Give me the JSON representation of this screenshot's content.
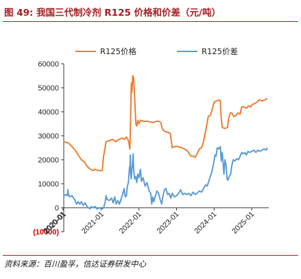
{
  "figure": {
    "title": "图 49:  我国三代制冷剂 R125 价格和价差（元/吨）",
    "source": "资料来源：百川盈孚，信达证券研发中心"
  },
  "colors": {
    "accent": "#a41f24",
    "price": "#ed7d31",
    "spread": "#5b9bd5",
    "negative_tick": "#d30000"
  },
  "chart_data": {
    "type": "line",
    "title": "",
    "xlabel": "",
    "ylabel": "",
    "ylim": [
      -10000,
      60000
    ],
    "yticks": [
      60000,
      50000,
      40000,
      30000,
      20000,
      10000,
      0,
      -10000
    ],
    "ytick_labels": [
      "60000",
      "50000",
      "40000",
      "30000",
      "20000",
      "10000",
      "0",
      "(10000)"
    ],
    "xlim": [
      "2020-01-01",
      "2025-06-15"
    ],
    "xticks": [
      "2020-01",
      "2020-01",
      "2021-01",
      "2022-01",
      "2023-01",
      "2024-01",
      "2025-01"
    ],
    "xtick_dates": [
      "2019-12-25",
      "2020-01-01",
      "2021-01-01",
      "2022-01-01",
      "2023-01-01",
      "2024-01-01",
      "2025-01-01"
    ],
    "legend": "top",
    "grid": false,
    "series": [
      {
        "name": "R125价格",
        "color": "#ed7d31",
        "points": [
          [
            "2020-01-01",
            27500
          ],
          [
            "2020-02-15",
            27000
          ],
          [
            "2020-03-20",
            25500
          ],
          [
            "2020-04-20",
            24000
          ],
          [
            "2020-05-20",
            22000
          ],
          [
            "2020-06-20",
            20000
          ],
          [
            "2020-07-20",
            19000
          ],
          [
            "2020-08-20",
            17000
          ],
          [
            "2020-09-15",
            16000
          ],
          [
            "2020-10-10",
            15500
          ],
          [
            "2020-11-01",
            16000
          ],
          [
            "2020-12-01",
            15500
          ],
          [
            "2021-01-10",
            15500
          ],
          [
            "2021-01-20",
            21000
          ],
          [
            "2021-02-15",
            27500
          ],
          [
            "2021-03-20",
            28000
          ],
          [
            "2021-04-20",
            28500
          ],
          [
            "2021-05-20",
            27500
          ],
          [
            "2021-06-20",
            28500
          ],
          [
            "2021-07-20",
            29000
          ],
          [
            "2021-08-15",
            28500
          ],
          [
            "2021-09-01",
            29500
          ],
          [
            "2021-09-20",
            28000
          ],
          [
            "2021-10-05",
            24500
          ],
          [
            "2021-10-10",
            35000
          ],
          [
            "2021-10-18",
            52000
          ],
          [
            "2021-10-24",
            48000
          ],
          [
            "2021-11-01",
            55000
          ],
          [
            "2021-11-10",
            54000
          ],
          [
            "2021-11-20",
            46000
          ],
          [
            "2021-12-01",
            35000
          ],
          [
            "2021-12-10",
            34000
          ],
          [
            "2021-12-20",
            36500
          ],
          [
            "2022-01-01",
            35000
          ],
          [
            "2022-01-15",
            36500
          ],
          [
            "2022-02-15",
            36000
          ],
          [
            "2022-04-01",
            36000
          ],
          [
            "2022-05-15",
            35500
          ],
          [
            "2022-06-15",
            36000
          ],
          [
            "2022-07-15",
            36000
          ],
          [
            "2022-08-01",
            35500
          ],
          [
            "2022-08-15",
            33000
          ],
          [
            "2022-09-01",
            32000
          ],
          [
            "2022-10-01",
            31500
          ],
          [
            "2022-11-01",
            31000
          ],
          [
            "2022-11-20",
            25000
          ],
          [
            "2022-12-15",
            25500
          ],
          [
            "2023-01-15",
            25500
          ],
          [
            "2023-02-20",
            25000
          ],
          [
            "2023-03-20",
            24500
          ],
          [
            "2023-04-20",
            23500
          ],
          [
            "2023-05-20",
            21500
          ],
          [
            "2023-06-15",
            21500
          ],
          [
            "2023-07-01",
            21000
          ],
          [
            "2023-07-20",
            22500
          ],
          [
            "2023-08-10",
            24500
          ],
          [
            "2023-09-01",
            25000
          ],
          [
            "2023-09-20",
            27500
          ],
          [
            "2023-10-15",
            33000
          ],
          [
            "2023-11-05",
            38000
          ],
          [
            "2023-11-25",
            38500
          ],
          [
            "2023-12-10",
            40500
          ],
          [
            "2024-01-01",
            44000
          ],
          [
            "2024-01-20",
            44500
          ],
          [
            "2024-02-01",
            44500
          ],
          [
            "2024-02-15",
            45000
          ],
          [
            "2024-03-01",
            44500
          ],
          [
            "2024-03-10",
            37000
          ],
          [
            "2024-03-20",
            33500
          ],
          [
            "2024-04-15",
            33000
          ],
          [
            "2024-05-10",
            33500
          ],
          [
            "2024-05-20",
            37000
          ],
          [
            "2024-06-05",
            39500
          ],
          [
            "2024-06-20",
            39500
          ],
          [
            "2024-07-10",
            38000
          ],
          [
            "2024-08-01",
            38500
          ],
          [
            "2024-08-20",
            39500
          ],
          [
            "2024-09-10",
            39000
          ],
          [
            "2024-09-25",
            42000
          ],
          [
            "2024-10-20",
            42000
          ],
          [
            "2024-11-10",
            41500
          ],
          [
            "2024-12-01",
            42500
          ],
          [
            "2024-12-20",
            42000
          ],
          [
            "2025-01-05",
            43000
          ],
          [
            "2025-02-01",
            43500
          ],
          [
            "2025-02-20",
            44000
          ],
          [
            "2025-03-15",
            45000
          ],
          [
            "2025-04-15",
            44500
          ],
          [
            "2025-05-10",
            45000
          ],
          [
            "2025-06-01",
            45500
          ]
        ]
      },
      {
        "name": "R125价差",
        "color": "#5b9bd5",
        "points": [
          [
            "2020-01-01",
            5000
          ],
          [
            "2020-01-20",
            5500
          ],
          [
            "2020-02-05",
            5000
          ],
          [
            "2020-02-10",
            7500
          ],
          [
            "2020-02-15",
            5500
          ],
          [
            "2020-03-01",
            4500
          ],
          [
            "2020-03-20",
            5000
          ],
          [
            "2020-04-15",
            3500
          ],
          [
            "2020-05-05",
            1500
          ],
          [
            "2020-05-20",
            2500
          ],
          [
            "2020-06-05",
            1500
          ],
          [
            "2020-06-20",
            2500
          ],
          [
            "2020-07-10",
            1000
          ],
          [
            "2020-07-25",
            2000
          ],
          [
            "2020-08-15",
            500
          ],
          [
            "2020-09-10",
            -500
          ],
          [
            "2020-09-25",
            500
          ],
          [
            "2020-10-10",
            0
          ],
          [
            "2020-11-01",
            500
          ],
          [
            "2020-11-20",
            -500
          ],
          [
            "2020-12-10",
            0
          ],
          [
            "2021-01-01",
            -500
          ],
          [
            "2021-01-20",
            -200
          ],
          [
            "2021-02-05",
            2000
          ],
          [
            "2021-02-15",
            5000
          ],
          [
            "2021-02-25",
            3500
          ],
          [
            "2021-03-20",
            3000
          ],
          [
            "2021-04-10",
            4000
          ],
          [
            "2021-04-25",
            2000
          ],
          [
            "2021-05-10",
            4500
          ],
          [
            "2021-05-25",
            1500
          ],
          [
            "2021-06-10",
            3000
          ],
          [
            "2021-06-25",
            1500
          ],
          [
            "2021-07-10",
            3500
          ],
          [
            "2021-07-25",
            5500
          ],
          [
            "2021-08-10",
            8000
          ],
          [
            "2021-08-20",
            4500
          ],
          [
            "2021-09-01",
            5000
          ],
          [
            "2021-09-10",
            9000
          ],
          [
            "2021-09-20",
            10500
          ],
          [
            "2021-10-01",
            17000
          ],
          [
            "2021-10-05",
            16000
          ],
          [
            "2021-10-08",
            22000
          ],
          [
            "2021-10-12",
            14000
          ],
          [
            "2021-10-18",
            12000
          ],
          [
            "2021-10-24",
            16000
          ],
          [
            "2021-11-01",
            20000
          ],
          [
            "2021-11-05",
            22500
          ],
          [
            "2021-11-10",
            16000
          ],
          [
            "2021-11-20",
            12000
          ],
          [
            "2021-12-01",
            13000
          ],
          [
            "2021-12-10",
            10500
          ],
          [
            "2021-12-20",
            14000
          ],
          [
            "2022-01-01",
            12500
          ],
          [
            "2022-01-15",
            16000
          ],
          [
            "2022-01-25",
            11000
          ],
          [
            "2022-02-10",
            12500
          ],
          [
            "2022-03-01",
            9000
          ],
          [
            "2022-03-20",
            10500
          ],
          [
            "2022-04-10",
            7000
          ],
          [
            "2022-04-25",
            6000
          ],
          [
            "2022-05-05",
            1500
          ],
          [
            "2022-05-15",
            4500
          ],
          [
            "2022-05-25",
            2500
          ],
          [
            "2022-06-10",
            5000
          ],
          [
            "2022-06-25",
            7000
          ],
          [
            "2022-07-10",
            6000
          ],
          [
            "2022-07-25",
            3500
          ],
          [
            "2022-08-10",
            1500
          ],
          [
            "2022-08-20",
            4500
          ],
          [
            "2022-09-05",
            7500
          ],
          [
            "2022-09-20",
            8000
          ],
          [
            "2022-10-05",
            5500
          ],
          [
            "2022-10-20",
            6000
          ],
          [
            "2022-11-05",
            4000
          ],
          [
            "2022-11-20",
            6000
          ],
          [
            "2022-12-10",
            4500
          ],
          [
            "2023-01-01",
            5000
          ],
          [
            "2023-01-20",
            6000
          ],
          [
            "2023-02-10",
            7500
          ],
          [
            "2023-03-01",
            5500
          ],
          [
            "2023-03-20",
            6000
          ],
          [
            "2023-04-10",
            5500
          ],
          [
            "2023-05-01",
            6000
          ],
          [
            "2023-05-20",
            5000
          ],
          [
            "2023-06-10",
            6500
          ],
          [
            "2023-07-01",
            5500
          ],
          [
            "2023-07-20",
            6000
          ],
          [
            "2023-08-10",
            7000
          ],
          [
            "2023-09-01",
            6500
          ],
          [
            "2023-09-20",
            8000
          ],
          [
            "2023-10-10",
            9500
          ],
          [
            "2023-10-25",
            9000
          ],
          [
            "2023-11-10",
            11000
          ],
          [
            "2023-11-25",
            13000
          ],
          [
            "2023-12-10",
            15000
          ],
          [
            "2023-12-25",
            18000
          ],
          [
            "2024-01-10",
            22000
          ],
          [
            "2024-01-20",
            21500
          ],
          [
            "2024-02-01",
            25000
          ],
          [
            "2024-02-15",
            24500
          ],
          [
            "2024-03-01",
            25500
          ],
          [
            "2024-03-10",
            19500
          ],
          [
            "2024-03-20",
            23000
          ],
          [
            "2024-03-28",
            18500
          ],
          [
            "2024-04-05",
            14000
          ],
          [
            "2024-04-15",
            20000
          ],
          [
            "2024-04-25",
            18000
          ],
          [
            "2024-05-05",
            12000
          ],
          [
            "2024-05-15",
            11500
          ],
          [
            "2024-05-25",
            13000
          ],
          [
            "2024-06-10",
            14000
          ],
          [
            "2024-06-20",
            17500
          ],
          [
            "2024-07-05",
            20000
          ],
          [
            "2024-07-20",
            19500
          ],
          [
            "2024-08-10",
            20500
          ],
          [
            "2024-08-25",
            20000
          ],
          [
            "2024-09-10",
            21500
          ],
          [
            "2024-09-25",
            23000
          ],
          [
            "2024-10-10",
            22500
          ],
          [
            "2024-10-25",
            23000
          ],
          [
            "2024-11-10",
            22000
          ],
          [
            "2024-11-25",
            23500
          ],
          [
            "2024-12-10",
            23000
          ],
          [
            "2025-01-01",
            23500
          ],
          [
            "2025-01-20",
            24000
          ],
          [
            "2025-02-10",
            23000
          ],
          [
            "2025-03-01",
            24000
          ],
          [
            "2025-03-20",
            23500
          ],
          [
            "2025-04-10",
            24000
          ],
          [
            "2025-05-01",
            24500
          ],
          [
            "2025-05-20",
            24000
          ],
          [
            "2025-06-01",
            25000
          ]
        ]
      }
    ]
  }
}
